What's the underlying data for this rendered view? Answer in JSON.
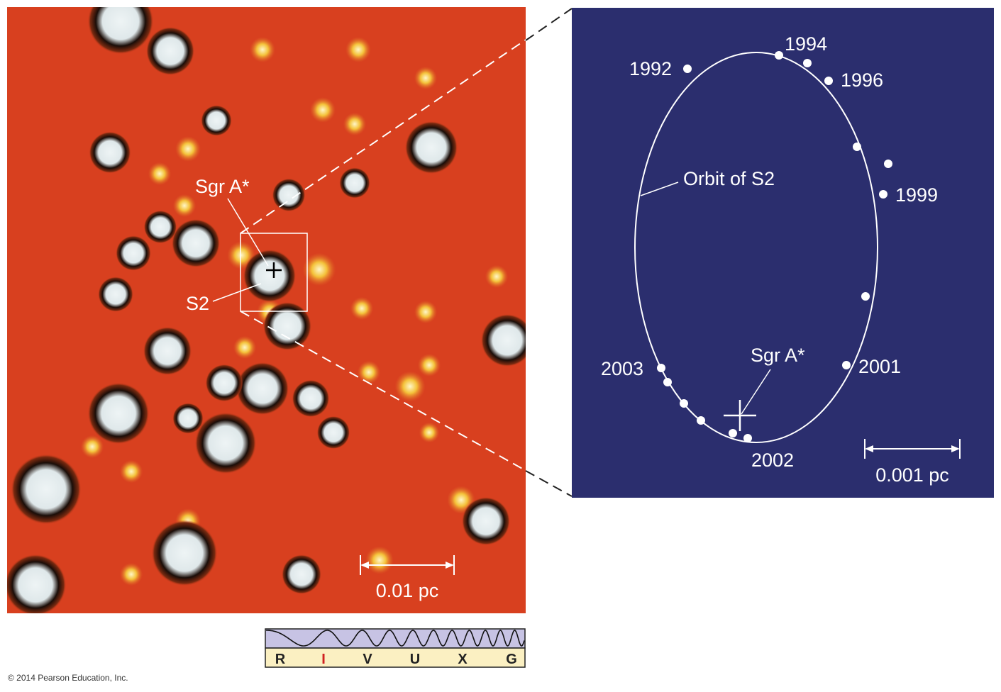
{
  "colors": {
    "image_background": "#d8401f",
    "panel_background": "#2b2e6e",
    "star": "#dfe8ea",
    "faint_star": "#f4c23a",
    "spectrum_bar": "#c7c3e4",
    "spectrum_letters_bg": "#fbf0c2",
    "spectrum_highlight": "#d02020"
  },
  "image_labels": {
    "sgr_a": "Sgr A*",
    "s2": "S2",
    "scale": "0.01 pc"
  },
  "panel": {
    "orbit_label": "Orbit of S2",
    "sgr_a_label": "Sgr A*",
    "scale": "0.001 pc",
    "years": {
      "y1992": "1992",
      "y1994": "1994",
      "y1996": "1996",
      "y1999": "1999",
      "y2001": "2001",
      "y2002": "2002",
      "y2003": "2003"
    }
  },
  "spectrum": {
    "bands": [
      "R",
      "I",
      "V",
      "U",
      "X",
      "G"
    ],
    "active_band": "I"
  },
  "copyright": "© 2014 Pearson Education, Inc."
}
